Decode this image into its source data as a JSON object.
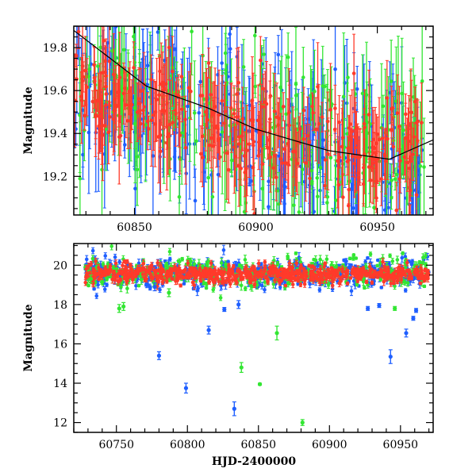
{
  "chart_data": [
    {
      "type": "scatter",
      "panel": "top",
      "title": "",
      "xlabel": "",
      "ylabel": "Magnitude",
      "xlim": [
        60825,
        60973
      ],
      "ylim": [
        19.9,
        19.02
      ],
      "y_inverted": true,
      "xticks": [
        60850,
        60900,
        60950
      ],
      "yticks": [
        19.2,
        19.4,
        19.6,
        19.8
      ],
      "error_bars": true,
      "series": [
        {
          "color": "#1f5fff",
          "dense": true,
          "x_range": [
            60825,
            60970
          ],
          "y_trend": [
            [
              60825,
              19.6
            ],
            [
              60870,
              19.52
            ],
            [
              60900,
              19.38
            ],
            [
              60970,
              19.28
            ]
          ],
          "scatter": 0.17,
          "err_range": [
            0.05,
            0.3
          ],
          "n": 280
        },
        {
          "color": "#33e633",
          "dense": true,
          "x_range": [
            60825,
            60970
          ],
          "y_trend": [
            [
              60825,
              19.6
            ],
            [
              60870,
              19.5
            ],
            [
              60900,
              19.38
            ],
            [
              60970,
              19.28
            ]
          ],
          "scatter": 0.19,
          "err_range": [
            0.05,
            0.3
          ],
          "n": 220
        },
        {
          "color": "#ff3a2a",
          "dense": true,
          "x_range": [
            60825,
            60970
          ],
          "y_trend": [
            [
              60825,
              19.6
            ],
            [
              60870,
              19.52
            ],
            [
              60900,
              19.38
            ],
            [
              60970,
              19.3
            ]
          ],
          "scatter": 0.13,
          "err_range": [
            0.05,
            0.22
          ],
          "n": 320
        }
      ],
      "fit_line": {
        "color": "#000000",
        "points": [
          [
            60825,
            19.88
          ],
          [
            60855,
            19.62
          ],
          [
            60880,
            19.52
          ],
          [
            60900,
            19.42
          ],
          [
            60930,
            19.32
          ],
          [
            60955,
            19.28
          ],
          [
            60973,
            19.37
          ]
        ]
      }
    },
    {
      "type": "scatter",
      "panel": "bottom",
      "title": "",
      "xlabel": "HJD-2400000",
      "ylabel": "Magnitude",
      "xlim": [
        60720,
        60973
      ],
      "ylim": [
        21.1,
        11.5
      ],
      "y_inverted": true,
      "xticks": [
        60750,
        60800,
        60850,
        60900,
        60950
      ],
      "yticks": [
        12,
        14,
        16,
        18,
        20
      ],
      "error_bars": true,
      "series": [
        {
          "color": "#1f5fff",
          "dense": true,
          "x_range": [
            60728,
            60970
          ],
          "y_level": 19.6,
          "scatter": 0.35,
          "err_range": [
            0.05,
            0.25
          ],
          "n": 520
        },
        {
          "color": "#33e633",
          "dense": true,
          "x_range": [
            60728,
            60970
          ],
          "y_level": 19.6,
          "scatter": 0.4,
          "err_range": [
            0.05,
            0.25
          ],
          "n": 360
        },
        {
          "color": "#ff3a2a",
          "dense": true,
          "x_range": [
            60728,
            60970
          ],
          "y_level": 19.55,
          "scatter": 0.22,
          "err_range": [
            0.05,
            0.2
          ],
          "n": 650
        }
      ],
      "outliers": [
        {
          "x": 60833,
          "y": 12.7,
          "err": 0.35,
          "color": "#1f5fff"
        },
        {
          "x": 60799,
          "y": 13.75,
          "err": 0.25,
          "color": "#1f5fff"
        },
        {
          "x": 60780,
          "y": 15.4,
          "err": 0.2,
          "color": "#1f5fff"
        },
        {
          "x": 60815,
          "y": 16.7,
          "err": 0.2,
          "color": "#1f5fff"
        },
        {
          "x": 60836,
          "y": 18.0,
          "err": 0.2,
          "color": "#1f5fff"
        },
        {
          "x": 60943,
          "y": 15.35,
          "err": 0.35,
          "color": "#1f5fff"
        },
        {
          "x": 60954,
          "y": 16.55,
          "err": 0.2,
          "color": "#1f5fff"
        },
        {
          "x": 60959,
          "y": 17.3,
          "err": 0.1,
          "color": "#1f5fff"
        },
        {
          "x": 60961,
          "y": 17.7,
          "err": 0.1,
          "color": "#1f5fff"
        },
        {
          "x": 60927,
          "y": 17.8,
          "err": 0.1,
          "color": "#1f5fff"
        },
        {
          "x": 60935,
          "y": 17.95,
          "err": 0.1,
          "color": "#1f5fff"
        },
        {
          "x": 60826,
          "y": 17.75,
          "err": 0.1,
          "color": "#1f5fff"
        },
        {
          "x": 60777,
          "y": 18.9,
          "err": 0.2,
          "color": "#1f5fff"
        },
        {
          "x": 60881,
          "y": 12.0,
          "err": 0.15,
          "color": "#33e633"
        },
        {
          "x": 60838,
          "y": 14.8,
          "err": 0.25,
          "color": "#33e633"
        },
        {
          "x": 60851,
          "y": 13.95,
          "err": 0.05,
          "color": "#33e633"
        },
        {
          "x": 60863,
          "y": 16.55,
          "err": 0.35,
          "color": "#33e633"
        },
        {
          "x": 60752,
          "y": 17.8,
          "err": 0.2,
          "color": "#33e633"
        },
        {
          "x": 60755,
          "y": 17.9,
          "err": 0.2,
          "color": "#33e633"
        },
        {
          "x": 60946,
          "y": 17.8,
          "err": 0.1,
          "color": "#33e633"
        },
        {
          "x": 60787,
          "y": 18.6,
          "err": 0.2,
          "color": "#33e633"
        },
        {
          "x": 60732,
          "y": 19.3,
          "err": 0.2,
          "color": "#33e633"
        }
      ]
    }
  ]
}
